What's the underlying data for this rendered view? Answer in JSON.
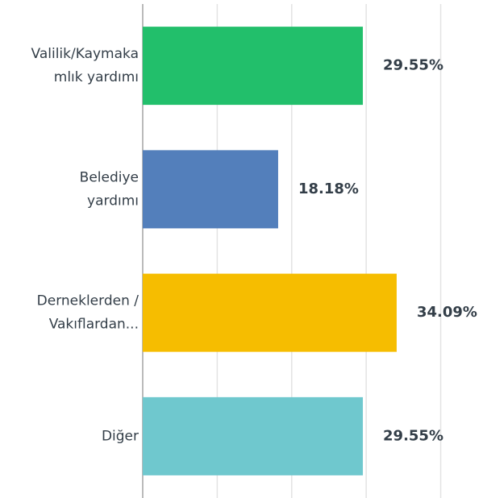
{
  "chart_data": {
    "type": "hbar",
    "categories": [
      [
        "Valilik/Kaymaka",
        "mlık yardımı"
      ],
      [
        "Belediye",
        "yardımı"
      ],
      [
        "Derneklerden /",
        "Vakıflardan..."
      ],
      [
        "Diğer"
      ]
    ],
    "values": [
      29.55,
      18.18,
      34.09,
      29.55
    ],
    "value_labels": [
      "29.55%",
      "18.18%",
      "34.09%",
      "29.55%"
    ],
    "colors": [
      "#22bf6b",
      "#537fbb",
      "#f6bd00",
      "#6fc8ce"
    ],
    "xlim": [
      0,
      46
    ],
    "xticks": [
      0,
      10,
      20,
      30,
      40
    ],
    "grid": true
  }
}
